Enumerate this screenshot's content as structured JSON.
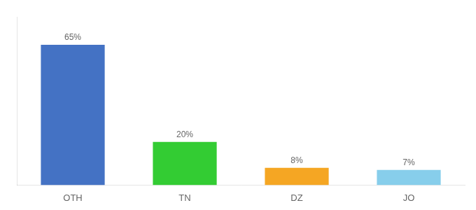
{
  "chart_data": {
    "type": "bar",
    "categories": [
      "OTH",
      "TN",
      "DZ",
      "JO"
    ],
    "values": [
      65,
      20,
      8,
      7
    ],
    "value_labels": [
      "65%",
      "20%",
      "8%",
      "7%"
    ],
    "data_labels": true,
    "colors": [
      "#4472c4",
      "#33cc33",
      "#f5a623",
      "#87ceeb"
    ],
    "ylim": [
      0,
      78
    ],
    "tick_labels": "x",
    "grid": false
  }
}
